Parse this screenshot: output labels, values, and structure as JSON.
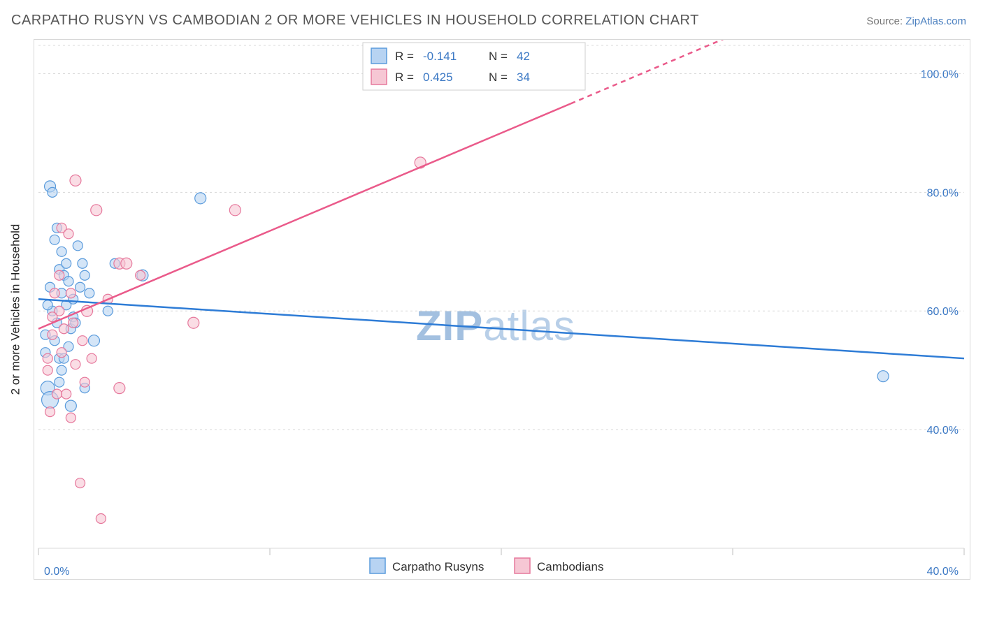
{
  "title": "CARPATHO RUSYN VS CAMBODIAN 2 OR MORE VEHICLES IN HOUSEHOLD CORRELATION CHART",
  "source_label": "Source:",
  "source_site": "ZipAtlas.com",
  "ylabel": "2 or more Vehicles in Household",
  "watermark_a": "ZIP",
  "watermark_b": "atlas",
  "legend_series": [
    {
      "label": "Carpatho Rusyns",
      "fill": "#b7d3f2",
      "stroke": "#5a9bdc"
    },
    {
      "label": "Cambodians",
      "fill": "#f6c7d4",
      "stroke": "#e6789c"
    }
  ],
  "corr_box": {
    "rows": [
      {
        "swatch_fill": "#b7d3f2",
        "swatch_stroke": "#5a9bdc",
        "r_label": "R =",
        "r_val": "-0.141",
        "n_label": "N =",
        "n_val": "42"
      },
      {
        "swatch_fill": "#f6c7d4",
        "swatch_stroke": "#e6789c",
        "r_label": "R =",
        "r_val": "0.425",
        "n_label": "N =",
        "n_val": "34"
      }
    ]
  },
  "chart": {
    "type": "scatter_with_regression",
    "xlim": [
      0,
      40
    ],
    "ylim": [
      20,
      105
    ],
    "x_ticks": [
      0,
      10,
      20,
      30,
      40
    ],
    "x_tick_labels": [
      "0.0%",
      "",
      "",
      "",
      "40.0%"
    ],
    "y_grid": [
      40,
      60,
      80,
      100
    ],
    "y_tick_labels": [
      "40.0%",
      "60.0%",
      "80.0%",
      "100.0%"
    ],
    "background": "#ffffff",
    "grid_color": "#d8d8d8",
    "series": [
      {
        "name": "Carpatho Rusyns",
        "point_fill": "#b7d3f2",
        "point_stroke": "#5a9bdc",
        "marker_r_min": 6,
        "marker_r_max": 12,
        "line": {
          "y_at_x0": 62.0,
          "y_at_x40": 52.0,
          "color": "#2e7cd6",
          "width": 2.5,
          "dash_after_x": 40
        },
        "points": [
          [
            0.5,
            81,
            8
          ],
          [
            0.6,
            80,
            7
          ],
          [
            0.8,
            74,
            7
          ],
          [
            0.9,
            67,
            7
          ],
          [
            1.0,
            70,
            7
          ],
          [
            1.0,
            63,
            7
          ],
          [
            1.1,
            66,
            7
          ],
          [
            1.2,
            68,
            7
          ],
          [
            1.2,
            61,
            7
          ],
          [
            1.3,
            65,
            7
          ],
          [
            1.5,
            62,
            7
          ],
          [
            1.5,
            59,
            7
          ],
          [
            1.4,
            57,
            7
          ],
          [
            0.8,
            58,
            7
          ],
          [
            0.7,
            55,
            7
          ],
          [
            0.9,
            52,
            7
          ],
          [
            1.0,
            50,
            7
          ],
          [
            0.4,
            47,
            10
          ],
          [
            0.5,
            45,
            12
          ],
          [
            1.4,
            44,
            8
          ],
          [
            1.3,
            54,
            7
          ],
          [
            2.0,
            66,
            7
          ],
          [
            2.2,
            63,
            7
          ],
          [
            2.4,
            55,
            8
          ],
          [
            3.0,
            60,
            7
          ],
          [
            3.3,
            68,
            7
          ],
          [
            4.5,
            66,
            8
          ],
          [
            7.0,
            79,
            8
          ],
          [
            1.7,
            71,
            7
          ],
          [
            1.8,
            64,
            7
          ],
          [
            0.6,
            60,
            7
          ],
          [
            0.4,
            61,
            7
          ],
          [
            0.3,
            56,
            7
          ],
          [
            0.3,
            53,
            7
          ],
          [
            0.9,
            48,
            7
          ],
          [
            1.1,
            52,
            7
          ],
          [
            2.0,
            47,
            7
          ],
          [
            36.5,
            49,
            8
          ],
          [
            1.6,
            58,
            7
          ],
          [
            0.5,
            64,
            7
          ],
          [
            0.7,
            72,
            7
          ],
          [
            1.9,
            68,
            7
          ]
        ]
      },
      {
        "name": "Cambodians",
        "point_fill": "#f6c7d4",
        "point_stroke": "#e6789c",
        "marker_r_min": 6,
        "marker_r_max": 12,
        "line": {
          "y_at_x0": 57.0,
          "y_at_x40": 123.0,
          "color": "#ea5a8a",
          "width": 2.5,
          "dash_after_x": 23
        },
        "points": [
          [
            1.6,
            82,
            8
          ],
          [
            1.0,
            74,
            7
          ],
          [
            1.3,
            73,
            7
          ],
          [
            2.5,
            77,
            8
          ],
          [
            3.5,
            68,
            8
          ],
          [
            3.8,
            68,
            8
          ],
          [
            4.4,
            66,
            7
          ],
          [
            0.7,
            63,
            7
          ],
          [
            0.9,
            60,
            7
          ],
          [
            1.1,
            57,
            7
          ],
          [
            1.5,
            58,
            7
          ],
          [
            2.1,
            60,
            8
          ],
          [
            0.6,
            56,
            7
          ],
          [
            0.4,
            52,
            7
          ],
          [
            0.4,
            50,
            7
          ],
          [
            1.0,
            53,
            7
          ],
          [
            1.6,
            51,
            7
          ],
          [
            2.0,
            48,
            7
          ],
          [
            3.5,
            47,
            8
          ],
          [
            1.2,
            46,
            7
          ],
          [
            0.8,
            46,
            7
          ],
          [
            0.5,
            43,
            7
          ],
          [
            1.4,
            42,
            7
          ],
          [
            6.7,
            58,
            8
          ],
          [
            8.5,
            77,
            8
          ],
          [
            16.5,
            85,
            8
          ],
          [
            1.8,
            31,
            7
          ],
          [
            2.7,
            25,
            7
          ],
          [
            0.6,
            59,
            7
          ],
          [
            0.9,
            66,
            7
          ],
          [
            1.4,
            63,
            7
          ],
          [
            1.9,
            55,
            7
          ],
          [
            2.3,
            52,
            7
          ],
          [
            3.0,
            62,
            7
          ]
        ]
      }
    ]
  }
}
